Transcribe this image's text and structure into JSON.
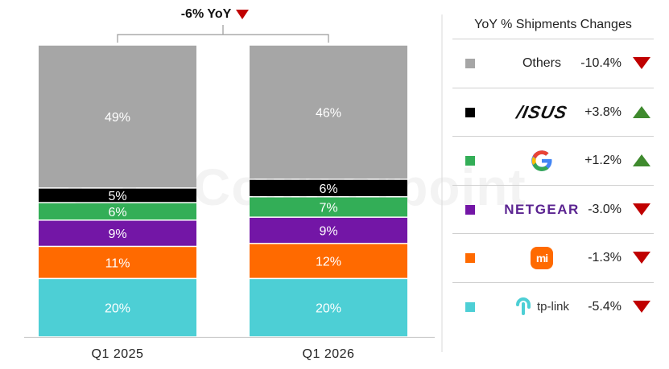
{
  "chart_data": {
    "type": "bar",
    "stacked": true,
    "normalized_percent": true,
    "categories": [
      "Q1 2025",
      "Q1 2026"
    ],
    "series": [
      {
        "name": "tp-link",
        "values": [
          20,
          20
        ],
        "color": "#4dcfd5"
      },
      {
        "name": "Xiaomi",
        "values": [
          11,
          12
        ],
        "color": "#ff6a00"
      },
      {
        "name": "NETGEAR",
        "values": [
          9,
          9
        ],
        "color": "#7316a6"
      },
      {
        "name": "Google",
        "values": [
          6,
          7
        ],
        "color": "#33ae57"
      },
      {
        "name": "ASUS",
        "values": [
          5,
          6
        ],
        "color": "#000000"
      },
      {
        "name": "Others",
        "values": [
          49,
          46
        ],
        "color": "#a6a6a6"
      }
    ],
    "total_change": {
      "label": "-6% YoY",
      "direction": "down",
      "color": "#c00000"
    },
    "table": {
      "title": "YoY % Shipments Changes",
      "rows": [
        {
          "brand": "Others",
          "logo": "text",
          "change": "-10.4%",
          "direction": "down",
          "color": "#a6a6a6"
        },
        {
          "brand": "ASUS",
          "logo": "asus-logo",
          "logo_text": "/ISUS",
          "change": "+3.8%",
          "direction": "up",
          "color": "#000000"
        },
        {
          "brand": "Google",
          "logo": "google-logo",
          "change": "+1.2%",
          "direction": "up",
          "color": "#33ae57"
        },
        {
          "brand": "NETGEAR",
          "logo": "netgear-logo",
          "logo_text": "NETGEAR",
          "change": "-3.0%",
          "direction": "down",
          "color": "#7316a6"
        },
        {
          "brand": "Xiaomi",
          "logo": "mi-logo",
          "logo_text": "mi",
          "change": "-1.3%",
          "direction": "down",
          "color": "#ff6a00"
        },
        {
          "brand": "tp-link",
          "logo": "tplink-logo",
          "logo_text": "tp-link",
          "change": "-5.4%",
          "direction": "down",
          "color": "#4dcfd5"
        }
      ],
      "up_color": "#3f8a2e",
      "down_color": "#c00000"
    },
    "watermark": "Counterpoint"
  }
}
